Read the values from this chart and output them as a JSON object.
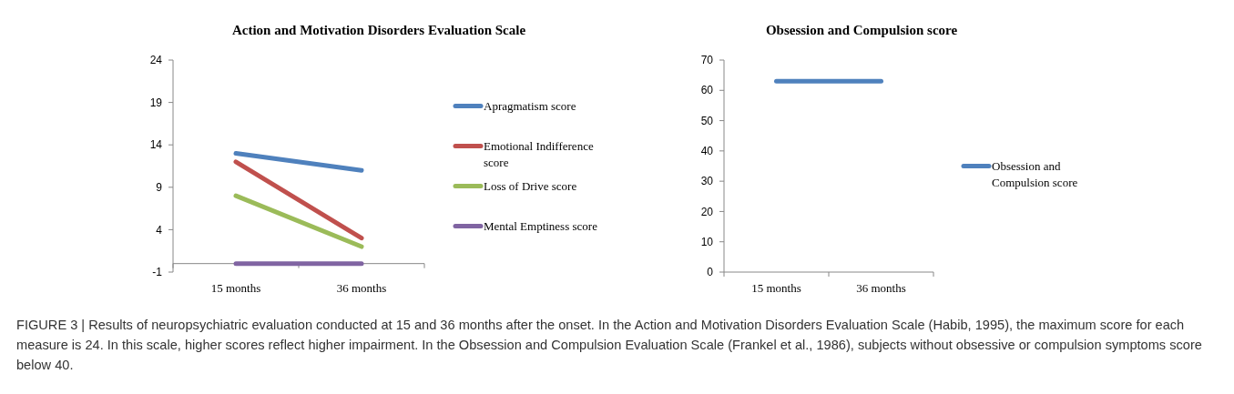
{
  "chart_data": [
    {
      "type": "line",
      "title": "Action and Motivation Disorders Evaluation Scale",
      "categories": [
        "15 months",
        "36 months"
      ],
      "ylim": [
        -1,
        24
      ],
      "yticks": [
        -1,
        4,
        9,
        14,
        19,
        24
      ],
      "legend": "right",
      "grid": false,
      "series": [
        {
          "name": "Apragmatism score",
          "color": "#4f81bd",
          "values": [
            13,
            11
          ]
        },
        {
          "name": "Emotional Indifference score",
          "color": "#c0504d",
          "values": [
            12,
            3
          ]
        },
        {
          "name": "Loss of Drive score",
          "color": "#9bbb59",
          "values": [
            8,
            2
          ]
        },
        {
          "name": "Mental Emptiness score",
          "color": "#8064a2",
          "values": [
            0,
            0
          ]
        }
      ],
      "annotations": [
        "FIGURE 3 | Results of neuropsychiatric evaluation conducted at 15 and 36 months after the onset. In the Action and Motivation Disorders Evaluation Scale (Habib, 1995), the maximum score for each measure is 24. In this scale, higher scores reflect higher impairment. In the Obsession and Compulsion Evaluation Scale (Frankel et al., 1986), subjects without obsessive or compulsion symptoms score below 40."
      ]
    },
    {
      "type": "line",
      "title": "Obsession and Compulsion score",
      "categories": [
        "15 months",
        "36 months"
      ],
      "ylim": [
        0,
        70
      ],
      "yticks": [
        0,
        10,
        20,
        30,
        40,
        50,
        60,
        70
      ],
      "legend": "right",
      "grid": false,
      "series": [
        {
          "name": "Obsession and Compulsion score",
          "color": "#4f81bd",
          "values": [
            63,
            63
          ]
        }
      ]
    }
  ]
}
